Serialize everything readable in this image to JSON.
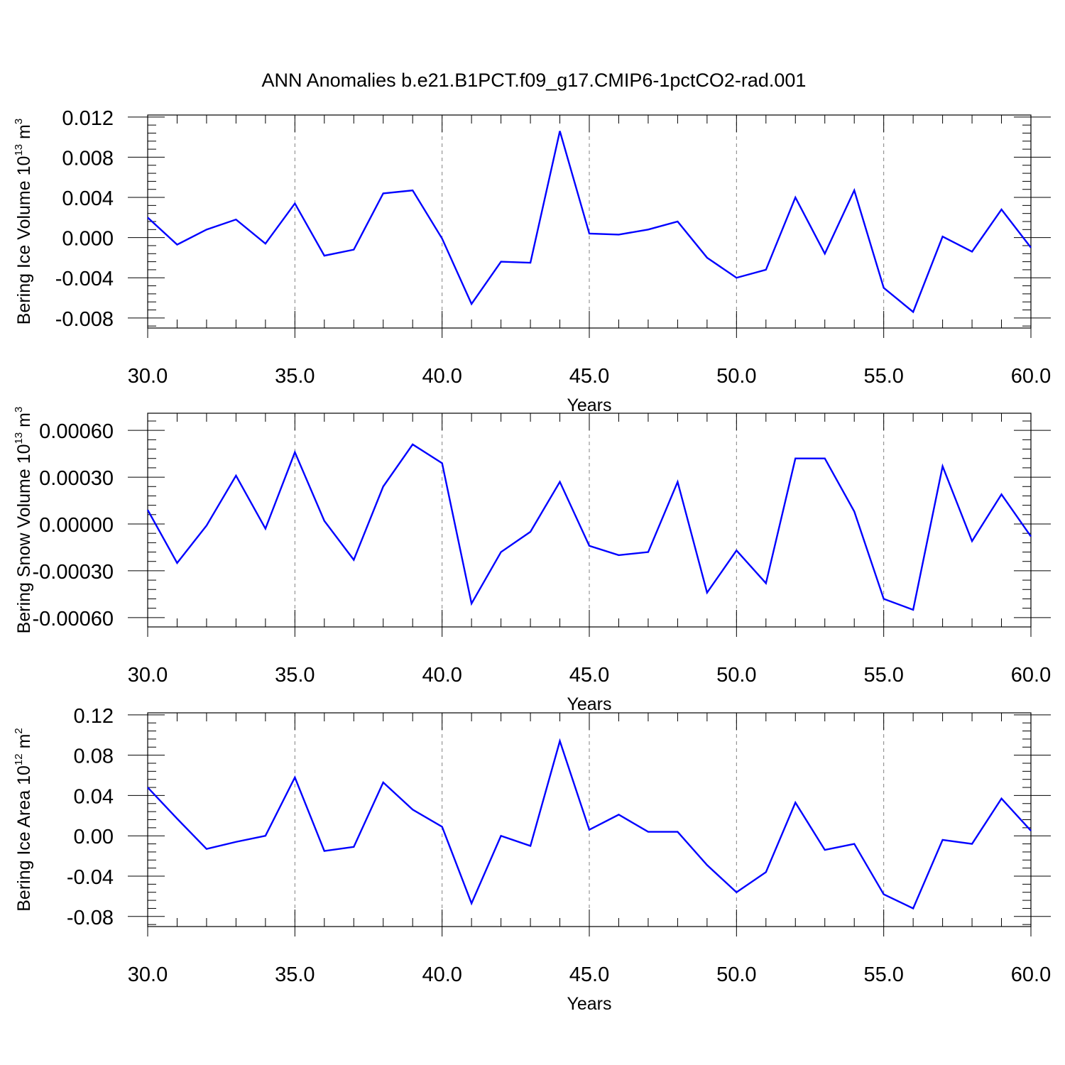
{
  "title": "ANN Anomalies b.e21.B1PCT.f09_g17.CMIP6-1pctCO2-rad.001",
  "line_color": "#0000ff",
  "grid_color": "#808080",
  "chart_data": [
    {
      "type": "line",
      "ylabel": {
        "text": "Bering Ice Volume 10",
        "exp": "13",
        "unit": " m",
        "unit_exp": "3"
      },
      "xlabel": "Years",
      "xlim": [
        30,
        60
      ],
      "ylim": [
        -0.009,
        0.0122
      ],
      "xticks": [
        "30.0",
        "35.0",
        "40.0",
        "45.0",
        "50.0",
        "55.0",
        "60.0"
      ],
      "yticks": [
        "-0.008",
        "-0.004",
        "0.000",
        "0.004",
        "0.008",
        "0.012"
      ],
      "grid": "dashed vertical at major x ticks",
      "series": [
        {
          "x": [
            30,
            31,
            32,
            33,
            34,
            35,
            36,
            37,
            38,
            39,
            40,
            41,
            42,
            43,
            44,
            45,
            46,
            47,
            48,
            49,
            50,
            51,
            52,
            53,
            54,
            55,
            56,
            57,
            58,
            59,
            60
          ],
          "values": [
            0.002,
            -0.0007,
            0.0008,
            0.0018,
            -0.0006,
            0.0034,
            -0.0018,
            -0.0012,
            0.0044,
            0.0047,
            -0.0001,
            -0.0066,
            -0.0024,
            -0.0025,
            0.0106,
            0.0004,
            0.0003,
            0.0008,
            0.0016,
            -0.002,
            -0.004,
            -0.0032,
            0.004,
            -0.0016,
            0.0047,
            -0.005,
            -0.0074,
            0.0001,
            -0.0014,
            0.0028,
            -0.001
          ]
        }
      ]
    },
    {
      "type": "line",
      "ylabel": {
        "text": "Bering Snow Volume 10",
        "exp": "13",
        "unit": " m",
        "unit_exp": "3"
      },
      "xlabel": "Years",
      "xlim": [
        30,
        60
      ],
      "ylim": [
        -0.00066,
        0.00071
      ],
      "xticks": [
        "30.0",
        "35.0",
        "40.0",
        "45.0",
        "50.0",
        "55.0",
        "60.0"
      ],
      "yticks": [
        "-0.00060",
        "-0.00030",
        "0.00000",
        "0.00030",
        "0.00060"
      ],
      "grid": "dashed vertical at major x ticks",
      "series": [
        {
          "x": [
            30,
            31,
            32,
            33,
            34,
            35,
            36,
            37,
            38,
            39,
            40,
            41,
            42,
            43,
            44,
            45,
            46,
            47,
            48,
            49,
            50,
            51,
            52,
            53,
            54,
            55,
            56,
            57,
            58,
            59,
            60
          ],
          "values": [
            9e-05,
            -0.00025,
            -1e-05,
            0.00031,
            -3e-05,
            0.00046,
            2e-05,
            -0.00023,
            0.00024,
            0.00051,
            0.00039,
            -0.00051,
            -0.00018,
            -5e-05,
            0.00027,
            -0.00014,
            -0.0002,
            -0.00018,
            0.00027,
            -0.00044,
            -0.00017,
            -0.00038,
            0.00042,
            0.00042,
            8e-05,
            -0.00048,
            -0.00055,
            0.00037,
            -0.00011,
            0.00019,
            -8e-05
          ]
        }
      ]
    },
    {
      "type": "line",
      "ylabel": {
        "text": "Bering Ice Area 10",
        "exp": "12",
        "unit": " m",
        "unit_exp": "2"
      },
      "xlabel": "Years",
      "xlim": [
        30,
        60
      ],
      "ylim": [
        -0.09,
        0.122
      ],
      "xticks": [
        "30.0",
        "35.0",
        "40.0",
        "45.0",
        "50.0",
        "55.0",
        "60.0"
      ],
      "yticks": [
        "-0.08",
        "-0.04",
        "0.00",
        "0.04",
        "0.08",
        "0.12"
      ],
      "grid": "dashed vertical at major x ticks",
      "series": [
        {
          "x": [
            30,
            31,
            32,
            33,
            34,
            35,
            36,
            37,
            38,
            39,
            40,
            41,
            42,
            43,
            44,
            45,
            46,
            47,
            48,
            49,
            50,
            51,
            52,
            53,
            54,
            55,
            56,
            57,
            58,
            59,
            60
          ],
          "values": [
            0.048,
            0.017,
            -0.013,
            -0.006,
            0.0,
            0.058,
            -0.015,
            -0.011,
            0.053,
            0.026,
            0.009,
            -0.067,
            0.0,
            -0.01,
            0.094,
            0.006,
            0.021,
            0.004,
            0.004,
            -0.029,
            -0.056,
            -0.036,
            0.033,
            -0.014,
            -0.008,
            -0.058,
            -0.072,
            -0.004,
            -0.008,
            0.037,
            0.005
          ]
        }
      ]
    }
  ]
}
